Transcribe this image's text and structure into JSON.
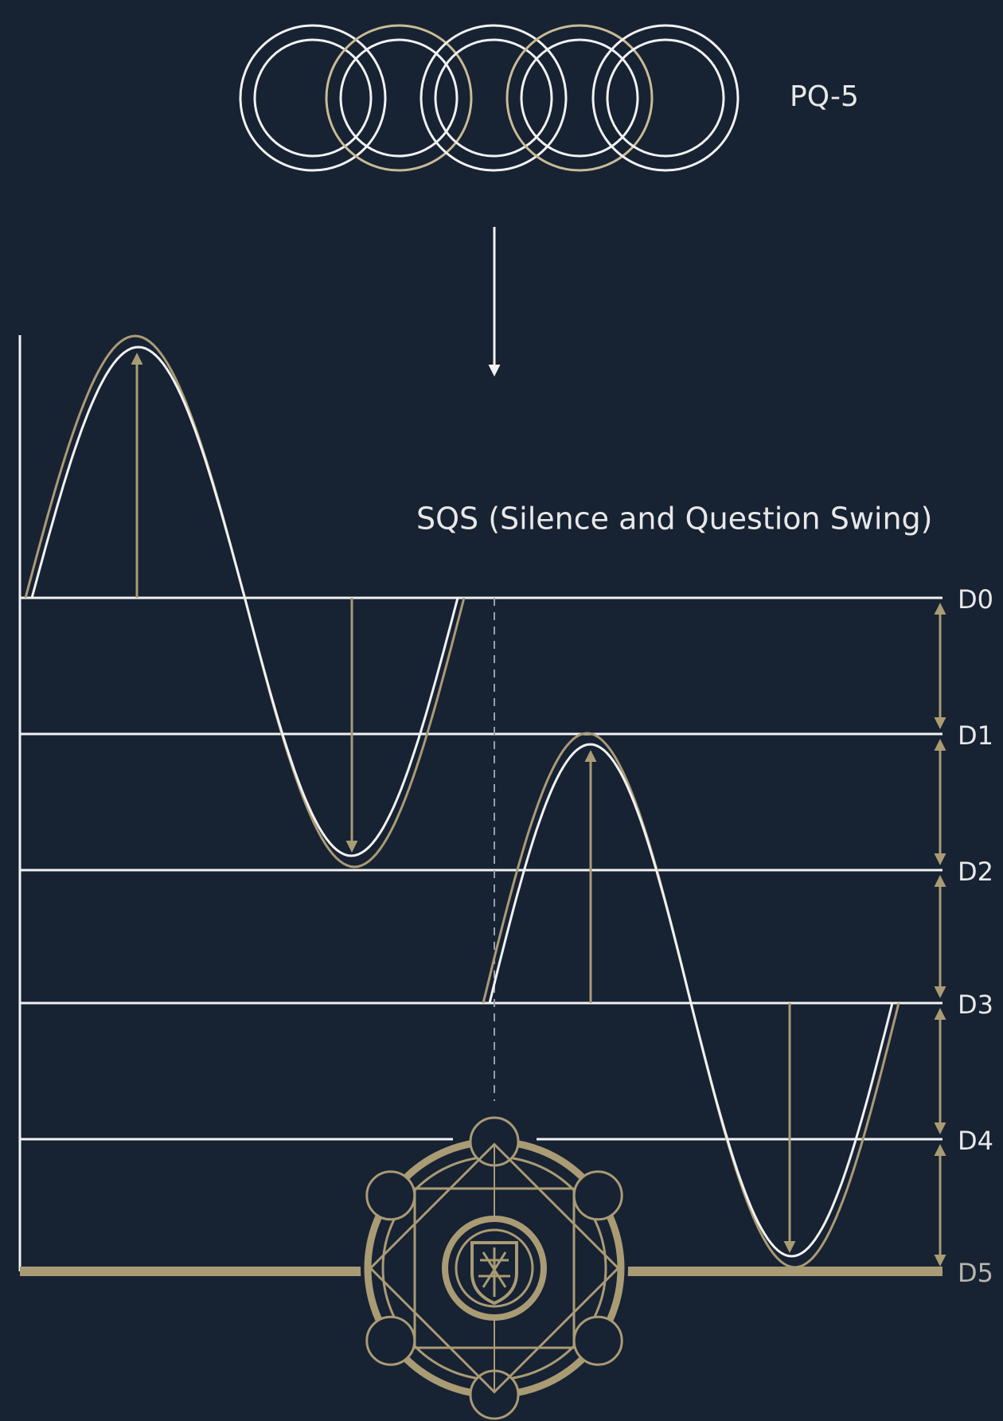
{
  "top_label": "PQ-5",
  "diagram_title": "SQS (Silence and Question Swing)",
  "levels": [
    "D0",
    "D1",
    "D2",
    "D3",
    "D4",
    "D5"
  ]
}
